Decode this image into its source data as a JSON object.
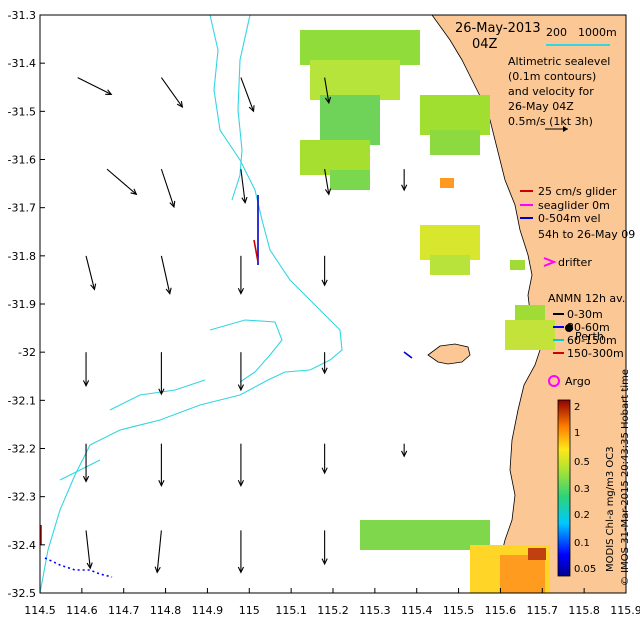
{
  "figure": {
    "date_title": "26-May-2013",
    "time_title": "04Z",
    "scalebar": {
      "left_label": "200",
      "right_label": "1000m"
    },
    "legend_lines": [
      "Altimetric sealevel",
      "(0.1m contours)",
      "and velocity for",
      "26-May 04Z",
      "0.5m/s (1kt 3h)"
    ],
    "glider_legend": [
      {
        "label": "25 cm/s glider",
        "color": "#cc0000"
      },
      {
        "label": "seaglider 0m",
        "color": "#ff00ff"
      },
      {
        "label": "0-504m vel",
        "color": "#0000cc"
      },
      {
        "label": "54h to 26-May 09",
        "color": "#000000"
      }
    ],
    "drifter_label": "drifter",
    "anmn_title": "ANMN 12h av.",
    "anmn_items": [
      {
        "label": "0-30m",
        "color": "#000000"
      },
      {
        "label": "30-60m",
        "color": "#0000ff"
      },
      {
        "label": "60-150m",
        "color": "#00cccc"
      },
      {
        "label": "150-300m",
        "color": "#cc0000"
      }
    ],
    "place_label": "Perth",
    "argo_label": "Argo",
    "colorbar": {
      "tick_labels": [
        "2",
        "1",
        "0.5",
        "0.3",
        "0.2",
        "0.1",
        "0.05"
      ],
      "title": "MODIS Chl-a mg/m3 OC3"
    },
    "credit": "© IMOS 31-Mar-2015 20:43:35 Hobart time",
    "colors": {
      "land": "#fbc795",
      "contour": "#33d6e3",
      "velocity": "#000000"
    }
  },
  "chart_data": {
    "type": "map",
    "x_axis": {
      "range": [
        114.5,
        115.9
      ],
      "ticks": [
        114.5,
        114.6,
        114.7,
        114.8,
        114.9,
        115,
        115.1,
        115.2,
        115.3,
        115.4,
        115.5,
        115.6,
        115.7,
        115.8,
        115.9
      ]
    },
    "y_axis": {
      "range": [
        -32.5,
        -31.3
      ],
      "ticks": [
        -31.3,
        -31.4,
        -31.5,
        -31.6,
        -31.7,
        -31.8,
        -31.9,
        -32,
        -32.1,
        -32.2,
        -32.3,
        -32.4,
        -32.5
      ]
    },
    "tick_labels_x": [
      "114.5",
      "114.6",
      "114.7",
      "114.8",
      "114.9",
      "115",
      "115.1",
      "115.2",
      "115.3",
      "115.4",
      "115.5",
      "115.6",
      "115.7",
      "115.8",
      "115.9"
    ],
    "tick_labels_y": [
      "-31.3",
      "-31.4",
      "-31.5",
      "-31.6",
      "-31.7",
      "-31.8",
      "-31.9",
      "-32",
      "-32.1",
      "-32.2",
      "-32.3",
      "-32.4",
      "-32.5"
    ],
    "colorbar_range": [
      0.05,
      2
    ],
    "velocity_vectors": [
      {
        "lon": 114.59,
        "lat": -31.43,
        "u": 0.08,
        "v": -0.04
      },
      {
        "lon": 114.66,
        "lat": -31.62,
        "u": 0.07,
        "v": -0.06
      },
      {
        "lon": 114.61,
        "lat": -31.8,
        "u": 0.02,
        "v": -0.08
      },
      {
        "lon": 114.61,
        "lat": -32.0,
        "u": 0.0,
        "v": -0.08
      },
      {
        "lon": 114.61,
        "lat": -32.19,
        "u": 0.0,
        "v": -0.09
      },
      {
        "lon": 114.61,
        "lat": -32.37,
        "u": 0.01,
        "v": -0.09
      },
      {
        "lon": 114.79,
        "lat": -31.43,
        "u": 0.05,
        "v": -0.07
      },
      {
        "lon": 114.79,
        "lat": -31.62,
        "u": 0.03,
        "v": -0.09
      },
      {
        "lon": 114.79,
        "lat": -31.8,
        "u": 0.02,
        "v": -0.09
      },
      {
        "lon": 114.79,
        "lat": -32.0,
        "u": 0.0,
        "v": -0.1
      },
      {
        "lon": 114.79,
        "lat": -32.19,
        "u": 0.0,
        "v": -0.1
      },
      {
        "lon": 114.79,
        "lat": -32.37,
        "u": -0.01,
        "v": -0.1
      },
      {
        "lon": 114.98,
        "lat": -31.43,
        "u": 0.03,
        "v": -0.08
      },
      {
        "lon": 114.98,
        "lat": -31.62,
        "u": 0.01,
        "v": -0.08
      },
      {
        "lon": 114.98,
        "lat": -31.8,
        "u": 0.0,
        "v": -0.09
      },
      {
        "lon": 114.98,
        "lat": -32.0,
        "u": 0.0,
        "v": -0.09
      },
      {
        "lon": 114.98,
        "lat": -32.19,
        "u": 0.0,
        "v": -0.1
      },
      {
        "lon": 114.98,
        "lat": -32.37,
        "u": 0.0,
        "v": -0.1
      },
      {
        "lon": 115.18,
        "lat": -31.43,
        "u": 0.01,
        "v": -0.06
      },
      {
        "lon": 115.18,
        "lat": -31.62,
        "u": 0.01,
        "v": -0.06
      },
      {
        "lon": 115.18,
        "lat": -31.8,
        "u": 0.0,
        "v": -0.07
      },
      {
        "lon": 115.18,
        "lat": -32.0,
        "u": 0.0,
        "v": -0.05
      },
      {
        "lon": 115.18,
        "lat": -32.19,
        "u": 0.0,
        "v": -0.07
      },
      {
        "lon": 115.18,
        "lat": -32.37,
        "u": 0.0,
        "v": -0.08
      },
      {
        "lon": 115.37,
        "lat": -31.62,
        "u": 0.0,
        "v": -0.05
      },
      {
        "lon": 115.37,
        "lat": -32.19,
        "u": 0.0,
        "v": -0.03
      }
    ]
  }
}
